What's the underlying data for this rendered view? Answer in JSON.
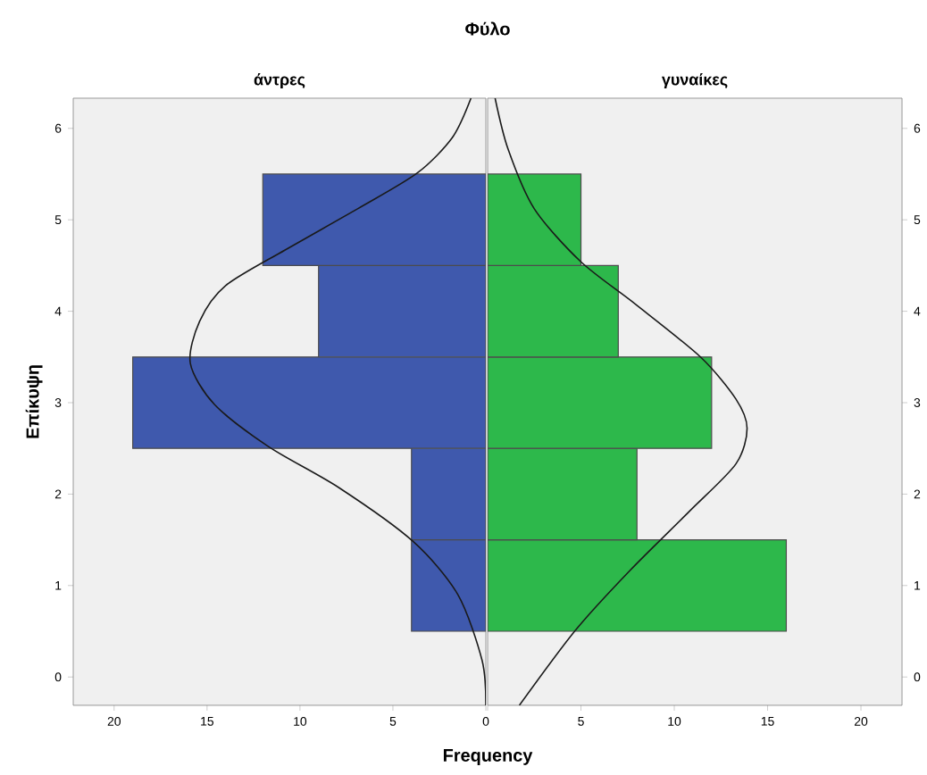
{
  "chart_data": [
    {
      "type": "bar",
      "orientation": "horizontal",
      "title": "άντρες",
      "ylabel": "Επίκυψη",
      "xlabel": "Frequency",
      "annotations": [
        "Φύλο"
      ],
      "x": [
        1,
        2,
        3,
        4,
        5
      ],
      "xlim": [
        22.2,
        0
      ],
      "xticks": [
        0,
        5,
        10,
        15,
        20
      ],
      "ylim": [
        -0.31,
        6.33
      ],
      "yticks": [
        0,
        1,
        2,
        3,
        4,
        5,
        6
      ],
      "series": [
        {
          "color": "#3f59ad",
          "values": [
            4,
            4,
            19,
            9,
            12
          ]
        },
        {
          "type": "line",
          "color": "#1a1a1a",
          "x": [
            -0.31,
            0.18,
            0.9,
            1.48,
            2.07,
            2.52,
            2.98,
            3.43,
            3.89,
            4.28,
            4.67,
            5.12,
            5.51,
            5.9,
            6.33
          ],
          "values": [
            0,
            0.2,
            1.5,
            3.9,
            7.9,
            11.7,
            14.6,
            15.9,
            15.4,
            14.0,
            10.8,
            6.9,
            3.7,
            1.8,
            0.8
          ]
        }
      ]
    },
    {
      "type": "bar",
      "orientation": "horizontal",
      "title": "γυναίκες",
      "x": [
        1,
        2,
        3,
        4,
        5
      ],
      "xlim": [
        0,
        22.2
      ],
      "xticks": [
        {
          "value": 0,
          "label": null
        },
        5,
        10,
        15,
        20
      ],
      "ylim": [
        -0.31,
        6.33
      ],
      "yticks": [
        0,
        1,
        2,
        3,
        4,
        5,
        6
      ],
      "series": [
        {
          "color": "#2db84b",
          "values": [
            16,
            8,
            12,
            7,
            5
          ]
        },
        {
          "type": "line",
          "color": "#1a1a1a",
          "x": [
            -0.31,
            0.51,
            1.16,
            1.81,
            2.33,
            2.72,
            3.04,
            3.5,
            4.08,
            4.54,
            5.12,
            5.77,
            6.33
          ],
          "values": [
            1.7,
            4.7,
            7.6,
            10.8,
            13.3,
            13.9,
            13.3,
            11.4,
            7.9,
            5.0,
            2.5,
            1.1,
            0.4
          ]
        }
      ]
    }
  ]
}
